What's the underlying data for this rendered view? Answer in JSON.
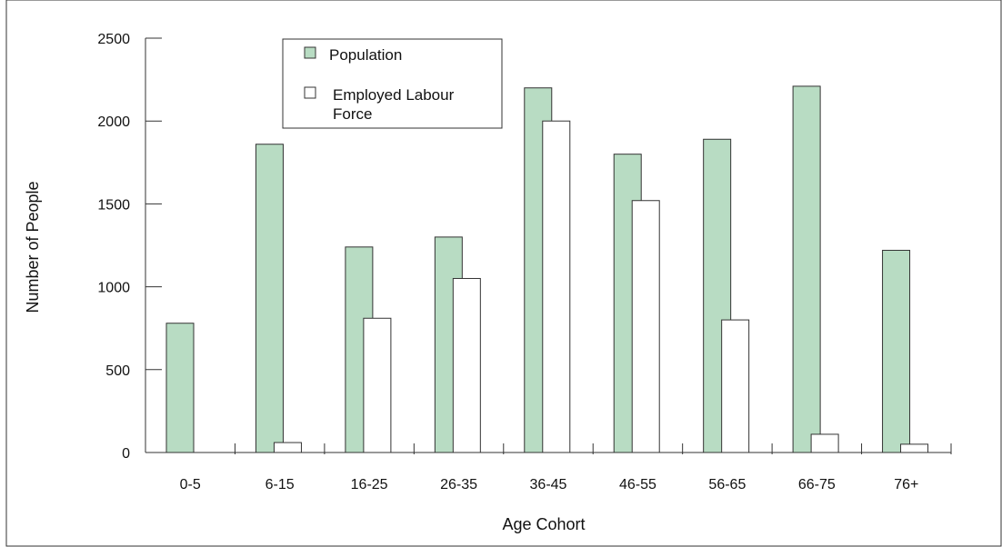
{
  "chart_data": {
    "type": "bar",
    "categories": [
      "0-5",
      "6-15",
      "16-25",
      "26-35",
      "36-45",
      "46-55",
      "56-65",
      "66-75",
      "76+"
    ],
    "series": [
      {
        "name": "Population",
        "values": [
          780,
          1860,
          1240,
          1300,
          2200,
          1800,
          1890,
          2210,
          1220
        ],
        "color": "#b8dcc3"
      },
      {
        "name": "Employed Labour Force",
        "values": [
          0,
          60,
          810,
          1050,
          2000,
          1520,
          800,
          110,
          50
        ],
        "color": "#ffffff"
      }
    ],
    "xlabel": "Age Cohort",
    "ylabel": "Number of People",
    "ylim": [
      0,
      2500
    ],
    "yticks": [
      "0",
      "500",
      "1000",
      "1500",
      "2000",
      "2500"
    ],
    "grid": false,
    "legend_position": "top-left",
    "legend": [
      {
        "line1": "Population",
        "line2": ""
      },
      {
        "line1": "Employed Labour",
        "line2": "Force"
      }
    ]
  }
}
